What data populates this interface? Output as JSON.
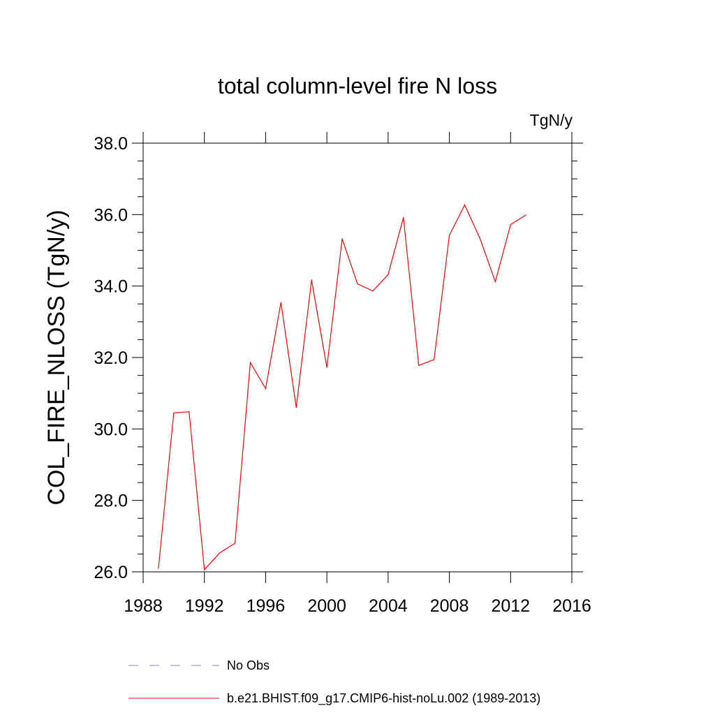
{
  "chart_data": {
    "type": "line",
    "title": "total column-level fire N loss",
    "units_label": "TgN/y",
    "ylabel": "COL_FIRE_NLOSS  (TgN/y)",
    "xlabel": "",
    "xlim": [
      1988,
      2016
    ],
    "ylim": [
      26.0,
      38.0
    ],
    "x_ticks": [
      1988,
      1992,
      1996,
      2000,
      2004,
      2008,
      2012,
      2016
    ],
    "x_tick_labels": [
      "1988",
      "1992",
      "1996",
      "2000",
      "2004",
      "2008",
      "2012",
      "2016"
    ],
    "y_ticks": [
      26,
      28,
      30,
      32,
      34,
      36,
      38
    ],
    "y_tick_labels": [
      "26.0",
      "28.0",
      "30.0",
      "32.0",
      "34.0",
      "36.0",
      "38.0"
    ],
    "grid": false,
    "legend_placement": "bottom",
    "series": [
      {
        "name": "b.e21.BHIST.f09_g17.CMIP6-hist-noLu.002 (1989-2013)",
        "color": "#ff0000",
        "style": "solid",
        "x": [
          1989,
          1990,
          1991,
          1992,
          1993,
          1994,
          1995,
          1996,
          1997,
          1998,
          1999,
          2000,
          2001,
          2002,
          2003,
          2004,
          2005,
          2006,
          2007,
          2008,
          2009,
          2010,
          2011,
          2012,
          2013
        ],
        "values": [
          26.1,
          30.45,
          30.48,
          26.06,
          26.53,
          26.8,
          31.86,
          31.13,
          33.54,
          30.6,
          34.17,
          31.72,
          35.32,
          34.06,
          33.86,
          34.32,
          35.92,
          31.78,
          31.94,
          35.42,
          36.27,
          35.33,
          34.12,
          35.72,
          35.99
        ]
      }
    ],
    "legend": [
      {
        "label": "No Obs",
        "color": "#8080c0",
        "style": "dashed"
      },
      {
        "label": "b.e21.BHIST.f09_g17.CMIP6-hist-noLu.002 (1989-2013)",
        "color": "#ff0000",
        "style": "solid"
      }
    ]
  }
}
